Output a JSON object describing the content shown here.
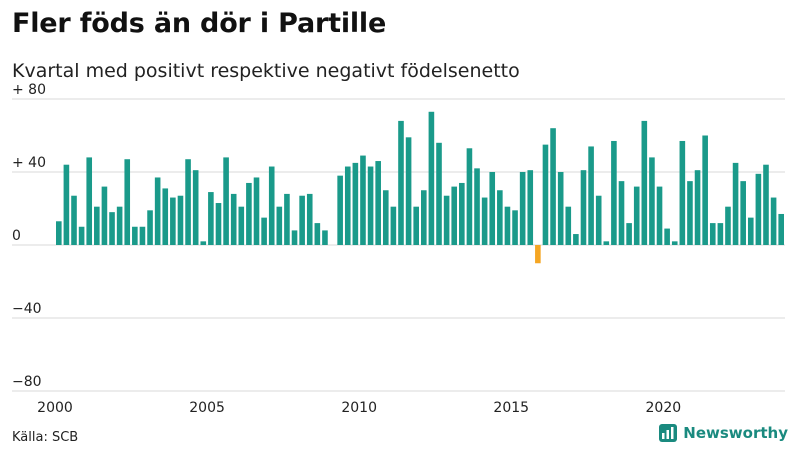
{
  "header": {
    "title": "Fler föds än dör i Partille",
    "subtitle": "Kvartal med positivt respektive negativt födelsenetto"
  },
  "footer": {
    "source": "Källa: SCB",
    "brand": "Newsworthy"
  },
  "colors": {
    "positive": "#1a9a8a",
    "negative": "#f5a623",
    "grid": "#d9d9d9"
  },
  "chart_data": {
    "type": "bar",
    "title": "Fler föds än dör i Partille",
    "subtitle": "Kvartal med positivt respektive negativt födelsenetto",
    "xlabel": "",
    "ylabel": "",
    "ylim": [
      -80,
      80
    ],
    "y_ticks": [
      80,
      40,
      0,
      -40,
      -80
    ],
    "y_tick_labels": [
      "+ 80",
      "+ 40",
      "0",
      "−40",
      "−80"
    ],
    "x_ticks": [
      2000,
      2005,
      2010,
      2015,
      2020
    ],
    "x_tick_labels": [
      "2000",
      "2005",
      "2010",
      "2015",
      "2020"
    ],
    "grid": true,
    "start_year": 2000,
    "period": "quarter",
    "values": [
      13,
      44,
      27,
      10,
      48,
      21,
      32,
      18,
      21,
      47,
      10,
      10,
      19,
      37,
      31,
      26,
      27,
      47,
      41,
      2,
      29,
      23,
      48,
      28,
      21,
      34,
      37,
      15,
      43,
      21,
      28,
      8,
      27,
      28,
      12,
      8,
      null,
      38,
      43,
      45,
      49,
      43,
      46,
      30,
      21,
      68,
      59,
      21,
      30,
      73,
      56,
      27,
      32,
      34,
      53,
      42,
      26,
      40,
      30,
      21,
      19,
      40,
      41,
      -10,
      55,
      64,
      40,
      21,
      6,
      41,
      54,
      27,
      2,
      57,
      35,
      12,
      32,
      68,
      48,
      32,
      9,
      2,
      57,
      35,
      41,
      60,
      12,
      12,
      21,
      45,
      35,
      15,
      39,
      44,
      26,
      17
    ]
  }
}
